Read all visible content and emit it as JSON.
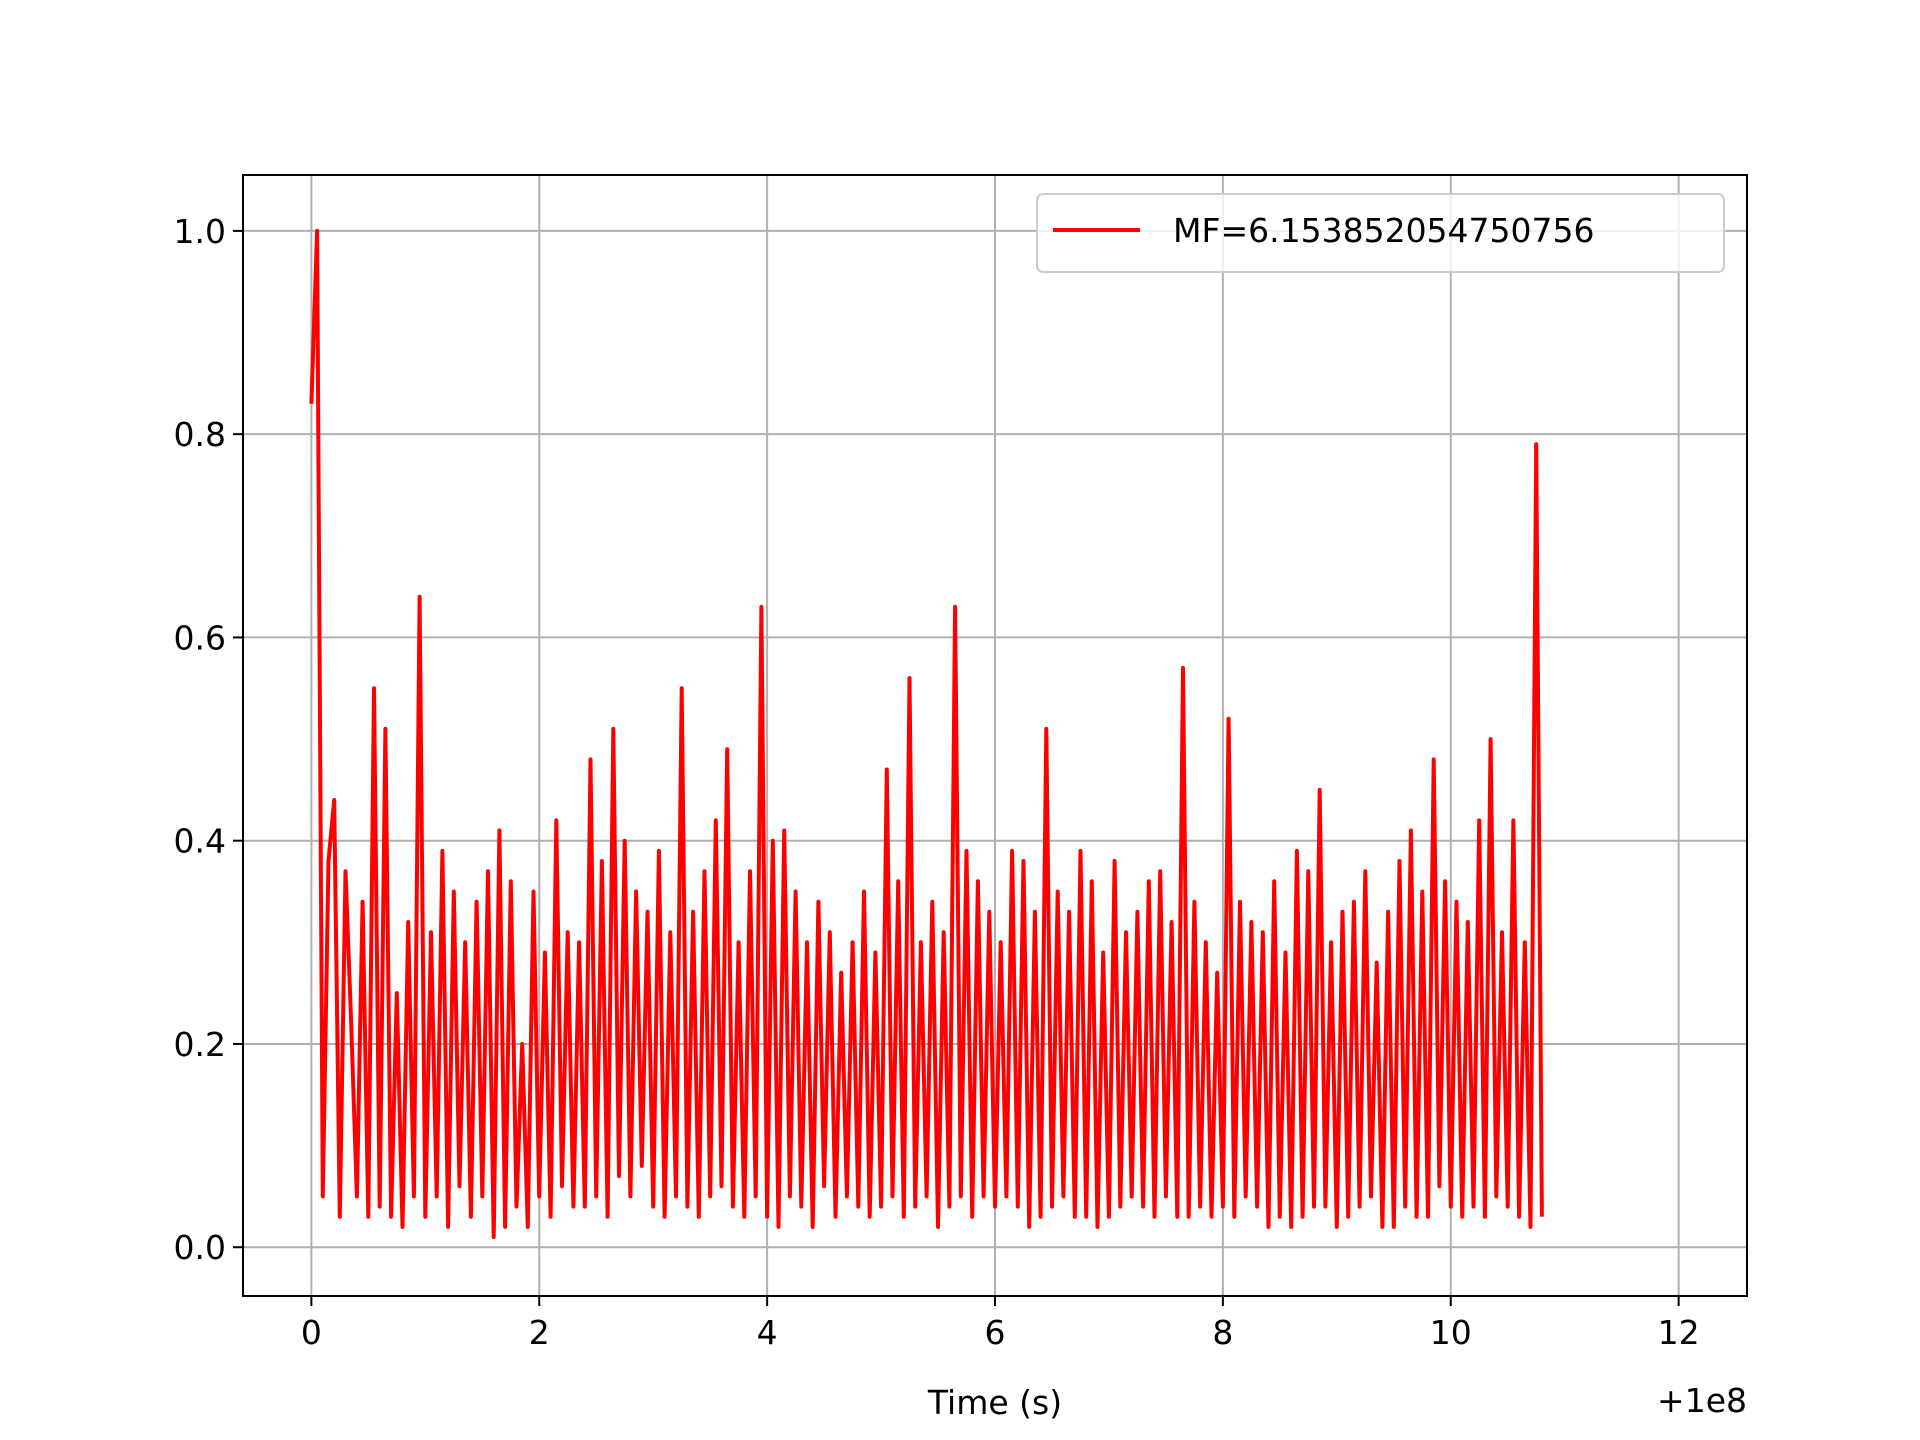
{
  "chart_data": {
    "type": "line",
    "title": "",
    "xlabel": "Time (s)",
    "ylabel": "",
    "x_offset_label": "+1e8",
    "xlim": [
      -0.6,
      12.6
    ],
    "ylim": [
      -0.048,
      1.055
    ],
    "x_ticks": [
      0,
      2,
      4,
      6,
      8,
      10,
      12
    ],
    "x_tick_labels": [
      "0",
      "2",
      "4",
      "6",
      "8",
      "10",
      "12"
    ],
    "y_ticks": [
      0.0,
      0.2,
      0.4,
      0.6,
      0.8,
      1.0
    ],
    "y_tick_labels": [
      "0.0",
      "0.2",
      "0.4",
      "0.6",
      "0.8",
      "1.0"
    ],
    "grid": true,
    "legend_position": "top-right",
    "series": [
      {
        "name": "MF=6.153852054750756",
        "color": "#ff0000",
        "x_start": 0,
        "x_step": 0.05,
        "y": [
          0.83,
          1.0,
          0.05,
          0.38,
          0.44,
          0.03,
          0.37,
          0.22,
          0.05,
          0.34,
          0.03,
          0.55,
          0.04,
          0.51,
          0.03,
          0.25,
          0.02,
          0.32,
          0.05,
          0.64,
          0.03,
          0.31,
          0.05,
          0.39,
          0.02,
          0.35,
          0.06,
          0.3,
          0.03,
          0.34,
          0.05,
          0.37,
          0.01,
          0.41,
          0.02,
          0.36,
          0.04,
          0.2,
          0.02,
          0.35,
          0.05,
          0.29,
          0.03,
          0.42,
          0.06,
          0.31,
          0.04,
          0.3,
          0.04,
          0.48,
          0.05,
          0.38,
          0.03,
          0.51,
          0.07,
          0.4,
          0.05,
          0.35,
          0.08,
          0.33,
          0.04,
          0.39,
          0.03,
          0.31,
          0.05,
          0.55,
          0.04,
          0.33,
          0.03,
          0.37,
          0.05,
          0.42,
          0.06,
          0.49,
          0.04,
          0.3,
          0.03,
          0.37,
          0.05,
          0.63,
          0.03,
          0.4,
          0.02,
          0.41,
          0.05,
          0.35,
          0.04,
          0.3,
          0.02,
          0.34,
          0.06,
          0.31,
          0.03,
          0.27,
          0.05,
          0.3,
          0.04,
          0.35,
          0.03,
          0.29,
          0.04,
          0.47,
          0.05,
          0.36,
          0.03,
          0.56,
          0.04,
          0.3,
          0.05,
          0.34,
          0.02,
          0.31,
          0.04,
          0.63,
          0.05,
          0.39,
          0.03,
          0.36,
          0.05,
          0.33,
          0.04,
          0.3,
          0.05,
          0.39,
          0.04,
          0.38,
          0.02,
          0.33,
          0.03,
          0.51,
          0.04,
          0.35,
          0.05,
          0.33,
          0.03,
          0.39,
          0.03,
          0.36,
          0.02,
          0.29,
          0.03,
          0.38,
          0.04,
          0.31,
          0.05,
          0.33,
          0.04,
          0.36,
          0.03,
          0.37,
          0.05,
          0.32,
          0.03,
          0.57,
          0.03,
          0.34,
          0.04,
          0.3,
          0.03,
          0.27,
          0.04,
          0.52,
          0.03,
          0.34,
          0.05,
          0.32,
          0.04,
          0.31,
          0.02,
          0.36,
          0.03,
          0.29,
          0.02,
          0.39,
          0.03,
          0.37,
          0.04,
          0.45,
          0.04,
          0.3,
          0.02,
          0.33,
          0.03,
          0.34,
          0.04,
          0.37,
          0.05,
          0.28,
          0.02,
          0.33,
          0.02,
          0.38,
          0.04,
          0.41,
          0.03,
          0.35,
          0.03,
          0.48,
          0.06,
          0.36,
          0.04,
          0.34,
          0.03,
          0.32,
          0.04,
          0.42,
          0.03,
          0.5,
          0.05,
          0.31,
          0.04,
          0.42,
          0.03,
          0.3,
          0.02,
          0.79,
          0.03
        ]
      }
    ]
  }
}
